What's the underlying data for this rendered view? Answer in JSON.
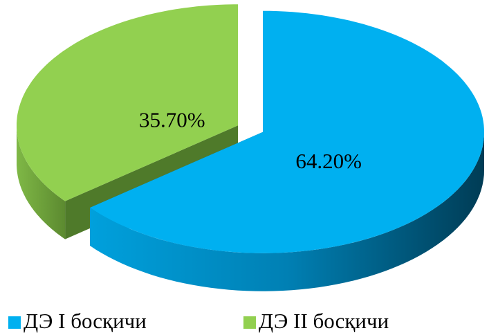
{
  "chart_data": {
    "type": "pie",
    "categories": [
      "ДЭ I босқичи",
      "ДЭ II босқичи"
    ],
    "values": [
      64.2,
      35.7
    ],
    "value_labels": [
      "64.20%",
      "35.70%"
    ],
    "colors": [
      "#00b0f0",
      "#92d050"
    ],
    "legend": "bottom"
  }
}
